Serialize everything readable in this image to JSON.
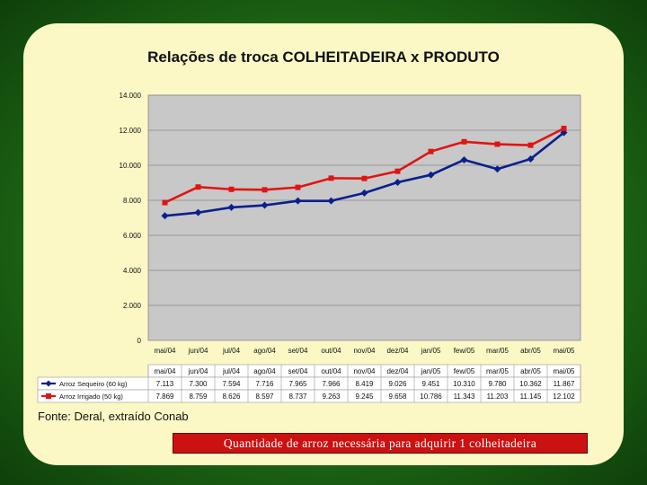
{
  "chart_data": {
    "type": "line",
    "title": "Relações de troca COLHEITADEIRA x PRODUTO",
    "categories": [
      "mai/04",
      "jun/04",
      "jul/04",
      "ago/04",
      "set/04",
      "out/04",
      "nov/04",
      "dez/04",
      "jan/05",
      "few/05",
      "mar/05",
      "abr/05",
      "mai/05"
    ],
    "ylim": [
      0,
      14000
    ],
    "yticks": [
      "0",
      "2.000",
      "4.000",
      "6.000",
      "8.000",
      "10.000",
      "12.000",
      "14.000"
    ],
    "ytick_values": [
      0,
      2000,
      4000,
      6000,
      8000,
      10000,
      12000,
      14000
    ],
    "grid": true,
    "series": [
      {
        "name": "Arroz Sequeiro (60 kg)",
        "color": "#0b1f8c",
        "marker": "diamond",
        "values": [
          7113,
          7300,
          7594,
          7716,
          7965,
          7966,
          8419,
          9026,
          9451,
          10310,
          9780,
          10362,
          11867
        ],
        "labels": [
          "7.113",
          "7.300",
          "7.594",
          "7.716",
          "7.965",
          "7.966",
          "8.419",
          "9.026",
          "9.451",
          "10.310",
          "9.780",
          "10.362",
          "11.867"
        ]
      },
      {
        "name": "Arroz Irrigado (50 kg)",
        "color": "#e01414",
        "marker": "square",
        "values": [
          7869,
          8759,
          8626,
          8597,
          8737,
          9263,
          9245,
          9658,
          10786,
          11343,
          11203,
          11145,
          12102
        ],
        "labels": [
          "7.869",
          "8.759",
          "8.626",
          "8.597",
          "8.737",
          "9.263",
          "9.245",
          "9.658",
          "10.786",
          "11.343",
          "11.203",
          "11.145",
          "12.102"
        ]
      }
    ]
  },
  "source_note": "Fonte: Deral, extraído Conab",
  "caption": "Quantidade de arroz necessária para adquirir 1 colheitadeira"
}
